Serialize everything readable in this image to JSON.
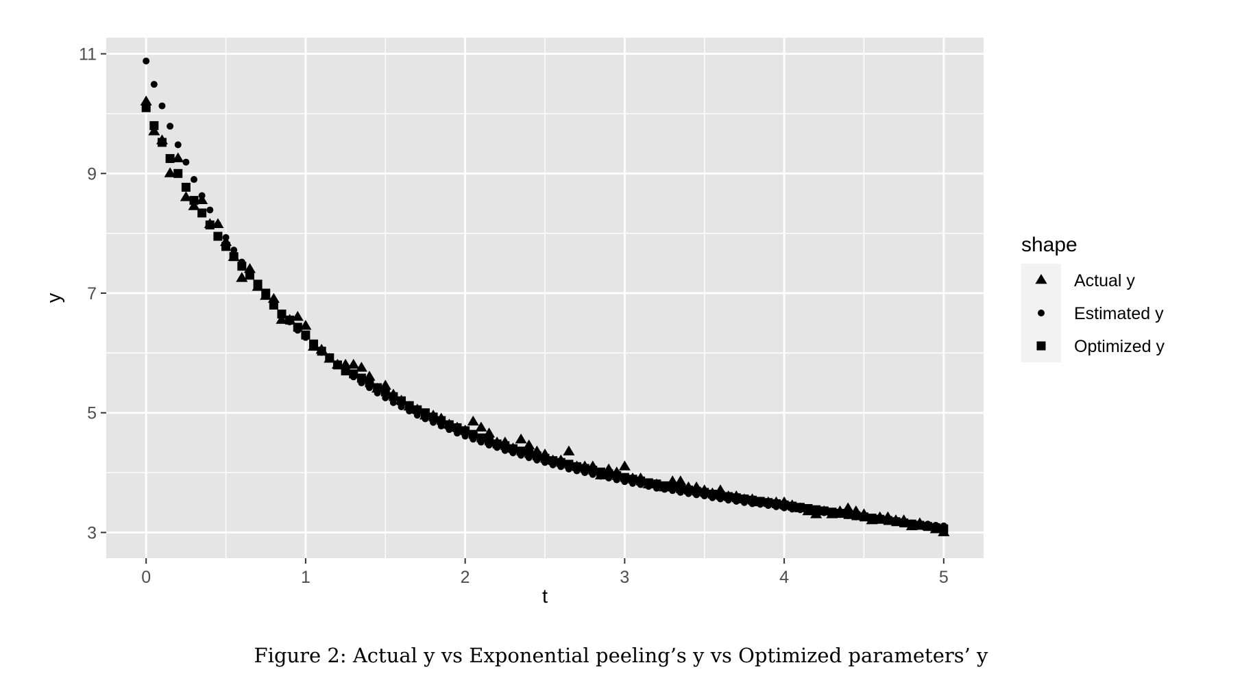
{
  "caption": "Figure 2: Actual y vs Exponential peeling’s y vs Optimized parameters’ y",
  "chart_data": {
    "type": "scatter",
    "title": "",
    "xlabel": "t",
    "ylabel": "y",
    "xlim": [
      -0.25,
      5.25
    ],
    "ylim": [
      2.57,
      11.27
    ],
    "x_ticks": [
      0,
      1,
      2,
      3,
      4,
      5
    ],
    "x_tick_labels": [
      "0",
      "1",
      "2",
      "3",
      "4",
      "5"
    ],
    "y_ticks": [
      3,
      5,
      7,
      9,
      11
    ],
    "y_tick_labels": [
      "3",
      "5",
      "7",
      "9",
      "11"
    ],
    "grid": true,
    "legend_position": "right",
    "legend_title": "shape",
    "background": "#e5e5e5",
    "grid_color": "#ffffff",
    "point_color": "#000000",
    "series": [
      {
        "name": "Actual y",
        "marker": "triangle",
        "points": [
          [
            0.0,
            10.2
          ],
          [
            0.05,
            9.7
          ],
          [
            0.1,
            9.55
          ],
          [
            0.15,
            9.0
          ],
          [
            0.2,
            9.25
          ],
          [
            0.25,
            8.6
          ],
          [
            0.3,
            8.45
          ],
          [
            0.35,
            8.55
          ],
          [
            0.4,
            8.15
          ],
          [
            0.45,
            8.15
          ],
          [
            0.5,
            7.85
          ],
          [
            0.55,
            7.6
          ],
          [
            0.6,
            7.25
          ],
          [
            0.65,
            7.4
          ],
          [
            0.7,
            7.1
          ],
          [
            0.75,
            6.95
          ],
          [
            0.8,
            6.9
          ],
          [
            0.85,
            6.55
          ],
          [
            0.9,
            6.55
          ],
          [
            0.95,
            6.6
          ],
          [
            1.0,
            6.45
          ],
          [
            1.05,
            6.1
          ],
          [
            1.1,
            6.05
          ],
          [
            1.15,
            5.9
          ],
          [
            1.2,
            5.8
          ],
          [
            1.25,
            5.8
          ],
          [
            1.3,
            5.8
          ],
          [
            1.35,
            5.75
          ],
          [
            1.4,
            5.6
          ],
          [
            1.45,
            5.4
          ],
          [
            1.5,
            5.45
          ],
          [
            1.55,
            5.3
          ],
          [
            1.6,
            5.2
          ],
          [
            1.65,
            5.1
          ],
          [
            1.7,
            5.05
          ],
          [
            1.75,
            4.95
          ],
          [
            1.8,
            4.95
          ],
          [
            1.85,
            4.9
          ],
          [
            1.9,
            4.8
          ],
          [
            1.95,
            4.75
          ],
          [
            2.0,
            4.7
          ],
          [
            2.05,
            4.85
          ],
          [
            2.1,
            4.75
          ],
          [
            2.15,
            4.65
          ],
          [
            2.2,
            4.5
          ],
          [
            2.25,
            4.5
          ],
          [
            2.3,
            4.4
          ],
          [
            2.35,
            4.55
          ],
          [
            2.4,
            4.45
          ],
          [
            2.45,
            4.35
          ],
          [
            2.5,
            4.3
          ],
          [
            2.55,
            4.2
          ],
          [
            2.6,
            4.2
          ],
          [
            2.65,
            4.35
          ],
          [
            2.7,
            4.1
          ],
          [
            2.75,
            4.1
          ],
          [
            2.8,
            4.1
          ],
          [
            2.85,
            3.95
          ],
          [
            2.9,
            4.05
          ],
          [
            2.95,
            4.0
          ],
          [
            3.0,
            4.1
          ],
          [
            3.05,
            3.9
          ],
          [
            3.1,
            3.9
          ],
          [
            3.15,
            3.8
          ],
          [
            3.2,
            3.8
          ],
          [
            3.25,
            3.75
          ],
          [
            3.3,
            3.85
          ],
          [
            3.35,
            3.85
          ],
          [
            3.4,
            3.75
          ],
          [
            3.45,
            3.75
          ],
          [
            3.5,
            3.7
          ],
          [
            3.55,
            3.65
          ],
          [
            3.6,
            3.7
          ],
          [
            3.65,
            3.6
          ],
          [
            3.7,
            3.6
          ],
          [
            3.75,
            3.55
          ],
          [
            3.8,
            3.55
          ],
          [
            3.85,
            3.5
          ],
          [
            3.9,
            3.5
          ],
          [
            3.95,
            3.5
          ],
          [
            4.0,
            3.5
          ],
          [
            4.05,
            3.45
          ],
          [
            4.1,
            3.4
          ],
          [
            4.15,
            3.35
          ],
          [
            4.2,
            3.3
          ],
          [
            4.25,
            3.35
          ],
          [
            4.3,
            3.3
          ],
          [
            4.35,
            3.35
          ],
          [
            4.4,
            3.4
          ],
          [
            4.45,
            3.35
          ],
          [
            4.5,
            3.3
          ],
          [
            4.55,
            3.2
          ],
          [
            4.6,
            3.25
          ],
          [
            4.65,
            3.25
          ],
          [
            4.7,
            3.2
          ],
          [
            4.75,
            3.2
          ],
          [
            4.8,
            3.1
          ],
          [
            4.85,
            3.15
          ],
          [
            4.9,
            3.1
          ],
          [
            4.95,
            3.05
          ],
          [
            5.0,
            3.0
          ]
        ]
      },
      {
        "name": "Estimated y",
        "marker": "circle",
        "points": [
          [
            0.0,
            10.88
          ],
          [
            0.05,
            10.49
          ],
          [
            0.1,
            10.13
          ],
          [
            0.15,
            9.79
          ],
          [
            0.2,
            9.48
          ],
          [
            0.25,
            9.19
          ],
          [
            0.3,
            8.9
          ],
          [
            0.35,
            8.63
          ],
          [
            0.4,
            8.39
          ],
          [
            0.45,
            8.15
          ],
          [
            0.5,
            7.93
          ],
          [
            0.55,
            7.72
          ],
          [
            0.6,
            7.52
          ],
          [
            0.65,
            7.33
          ],
          [
            0.7,
            7.15
          ],
          [
            0.75,
            6.98
          ],
          [
            0.8,
            6.82
          ],
          [
            0.85,
            6.67
          ],
          [
            0.9,
            6.52
          ],
          [
            0.95,
            6.38
          ],
          [
            1.0,
            6.26
          ],
          [
            1.05,
            6.13
          ],
          [
            1.1,
            6.01
          ],
          [
            1.15,
            5.9
          ],
          [
            1.2,
            5.79
          ],
          [
            1.25,
            5.69
          ],
          [
            1.3,
            5.6
          ],
          [
            1.35,
            5.5
          ],
          [
            1.4,
            5.42
          ],
          [
            1.45,
            5.33
          ],
          [
            1.5,
            5.25
          ],
          [
            1.55,
            5.17
          ],
          [
            1.6,
            5.1
          ],
          [
            1.65,
            5.03
          ],
          [
            1.7,
            4.96
          ],
          [
            1.75,
            4.9
          ],
          [
            1.8,
            4.84
          ],
          [
            1.85,
            4.78
          ],
          [
            1.9,
            4.72
          ],
          [
            1.95,
            4.66
          ],
          [
            2.0,
            4.61
          ],
          [
            2.05,
            4.56
          ],
          [
            2.1,
            4.51
          ],
          [
            2.15,
            4.46
          ],
          [
            2.2,
            4.42
          ],
          [
            2.25,
            4.37
          ],
          [
            2.3,
            4.33
          ],
          [
            2.35,
            4.29
          ],
          [
            2.4,
            4.25
          ],
          [
            2.45,
            4.21
          ],
          [
            2.5,
            4.17
          ],
          [
            2.55,
            4.13
          ],
          [
            2.6,
            4.1
          ],
          [
            2.65,
            4.06
          ],
          [
            2.7,
            4.03
          ],
          [
            2.75,
            4.0
          ],
          [
            2.8,
            3.97
          ],
          [
            2.85,
            3.94
          ],
          [
            2.9,
            3.91
          ],
          [
            2.95,
            3.88
          ],
          [
            3.0,
            3.85
          ],
          [
            3.05,
            3.82
          ],
          [
            3.1,
            3.8
          ],
          [
            3.15,
            3.77
          ],
          [
            3.2,
            3.74
          ],
          [
            3.25,
            3.72
          ],
          [
            3.3,
            3.7
          ],
          [
            3.35,
            3.67
          ],
          [
            3.4,
            3.65
          ],
          [
            3.45,
            3.63
          ],
          [
            3.5,
            3.61
          ],
          [
            3.55,
            3.58
          ],
          [
            3.6,
            3.56
          ],
          [
            3.65,
            3.54
          ],
          [
            3.7,
            3.52
          ],
          [
            3.75,
            3.5
          ],
          [
            3.8,
            3.48
          ],
          [
            3.85,
            3.47
          ],
          [
            3.9,
            3.45
          ],
          [
            3.95,
            3.43
          ],
          [
            4.0,
            3.41
          ],
          [
            4.05,
            3.39
          ],
          [
            4.1,
            3.38
          ],
          [
            4.15,
            3.36
          ],
          [
            4.2,
            3.34
          ],
          [
            4.25,
            3.33
          ],
          [
            4.3,
            3.31
          ],
          [
            4.35,
            3.3
          ],
          [
            4.4,
            3.28
          ],
          [
            4.45,
            3.26
          ],
          [
            4.5,
            3.25
          ],
          [
            4.55,
            3.24
          ],
          [
            4.6,
            3.22
          ],
          [
            4.65,
            3.21
          ],
          [
            4.7,
            3.19
          ],
          [
            4.75,
            3.18
          ],
          [
            4.8,
            3.16
          ],
          [
            4.85,
            3.15
          ],
          [
            4.9,
            3.14
          ],
          [
            4.95,
            3.12
          ],
          [
            5.0,
            3.11
          ]
        ]
      },
      {
        "name": "Optimized y",
        "marker": "square",
        "points": [
          [
            0.0,
            10.1
          ],
          [
            0.05,
            9.8
          ],
          [
            0.1,
            9.52
          ],
          [
            0.15,
            9.25
          ],
          [
            0.2,
            9.0
          ],
          [
            0.25,
            8.77
          ],
          [
            0.3,
            8.55
          ],
          [
            0.35,
            8.34
          ],
          [
            0.4,
            8.14
          ],
          [
            0.45,
            7.95
          ],
          [
            0.5,
            7.78
          ],
          [
            0.55,
            7.61
          ],
          [
            0.6,
            7.45
          ],
          [
            0.65,
            7.3
          ],
          [
            0.7,
            7.15
          ],
          [
            0.75,
            7.0
          ],
          [
            0.8,
            6.8
          ],
          [
            0.85,
            6.65
          ],
          [
            0.9,
            6.55
          ],
          [
            0.95,
            6.43
          ],
          [
            1.0,
            6.3
          ],
          [
            1.05,
            6.15
          ],
          [
            1.1,
            6.03
          ],
          [
            1.15,
            5.92
          ],
          [
            1.2,
            5.8
          ],
          [
            1.25,
            5.7
          ],
          [
            1.3,
            5.65
          ],
          [
            1.35,
            5.58
          ],
          [
            1.4,
            5.5
          ],
          [
            1.45,
            5.42
          ],
          [
            1.5,
            5.35
          ],
          [
            1.55,
            5.27
          ],
          [
            1.6,
            5.2
          ],
          [
            1.65,
            5.12
          ],
          [
            1.7,
            5.05
          ],
          [
            1.75,
            5.0
          ],
          [
            1.8,
            4.93
          ],
          [
            1.85,
            4.87
          ],
          [
            1.9,
            4.8
          ],
          [
            1.95,
            4.75
          ],
          [
            2.0,
            4.7
          ],
          [
            2.05,
            4.64
          ],
          [
            2.1,
            4.58
          ],
          [
            2.15,
            4.53
          ],
          [
            2.2,
            4.48
          ],
          [
            2.25,
            4.45
          ],
          [
            2.3,
            4.4
          ],
          [
            2.35,
            4.36
          ],
          [
            2.4,
            4.32
          ],
          [
            2.45,
            4.28
          ],
          [
            2.5,
            4.24
          ],
          [
            2.55,
            4.2
          ],
          [
            2.6,
            4.17
          ],
          [
            2.65,
            4.14
          ],
          [
            2.7,
            4.1
          ],
          [
            2.75,
            4.07
          ],
          [
            2.8,
            4.04
          ],
          [
            2.85,
            4.01
          ],
          [
            2.9,
            3.98
          ],
          [
            2.95,
            3.95
          ],
          [
            3.0,
            3.92
          ],
          [
            3.05,
            3.89
          ],
          [
            3.1,
            3.86
          ],
          [
            3.15,
            3.83
          ],
          [
            3.2,
            3.81
          ],
          [
            3.25,
            3.78
          ],
          [
            3.3,
            3.76
          ],
          [
            3.35,
            3.73
          ],
          [
            3.4,
            3.71
          ],
          [
            3.45,
            3.69
          ],
          [
            3.5,
            3.67
          ],
          [
            3.55,
            3.64
          ],
          [
            3.6,
            3.62
          ],
          [
            3.65,
            3.6
          ],
          [
            3.7,
            3.58
          ],
          [
            3.75,
            3.56
          ],
          [
            3.8,
            3.54
          ],
          [
            3.85,
            3.52
          ],
          [
            3.9,
            3.5
          ],
          [
            3.95,
            3.48
          ],
          [
            4.0,
            3.46
          ],
          [
            4.05,
            3.44
          ],
          [
            4.1,
            3.42
          ],
          [
            4.15,
            3.4
          ],
          [
            4.2,
            3.38
          ],
          [
            4.25,
            3.36
          ],
          [
            4.3,
            3.34
          ],
          [
            4.35,
            3.32
          ],
          [
            4.4,
            3.3
          ],
          [
            4.45,
            3.28
          ],
          [
            4.5,
            3.26
          ],
          [
            4.55,
            3.24
          ],
          [
            4.6,
            3.22
          ],
          [
            4.65,
            3.2
          ],
          [
            4.7,
            3.18
          ],
          [
            4.75,
            3.16
          ],
          [
            4.8,
            3.14
          ],
          [
            4.85,
            3.12
          ],
          [
            4.9,
            3.1
          ],
          [
            4.95,
            3.08
          ],
          [
            5.0,
            3.06
          ]
        ]
      }
    ]
  }
}
